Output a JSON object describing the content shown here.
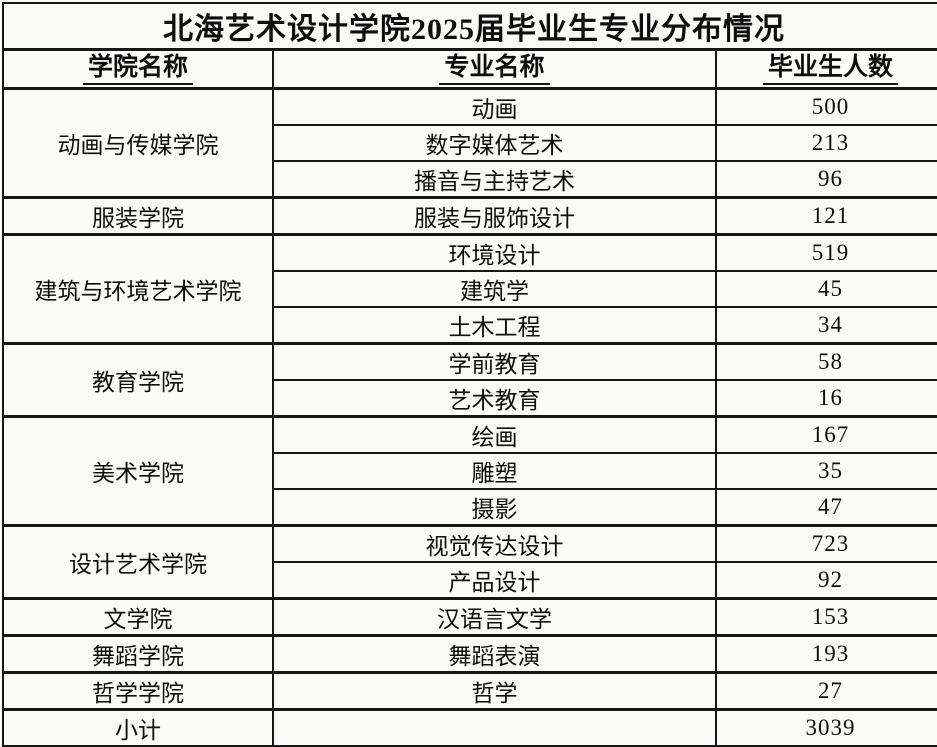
{
  "chart_data": {
    "type": "table",
    "title": "北海艺术设计学院2025届毕业生专业分布情况",
    "columns": [
      "学院名称",
      "专业名称",
      "毕业生人数"
    ],
    "groups": [
      {
        "college": "动画与传媒学院",
        "majors": [
          {
            "name": "动画",
            "count": 500
          },
          {
            "name": "数字媒体艺术",
            "count": 213
          },
          {
            "name": "播音与主持艺术",
            "count": 96
          }
        ]
      },
      {
        "college": "服装学院",
        "majors": [
          {
            "name": "服装与服饰设计",
            "count": 121
          }
        ]
      },
      {
        "college": "建筑与环境艺术学院",
        "majors": [
          {
            "name": "环境设计",
            "count": 519
          },
          {
            "name": "建筑学",
            "count": 45
          },
          {
            "name": "土木工程",
            "count": 34
          }
        ]
      },
      {
        "college": "教育学院",
        "majors": [
          {
            "name": "学前教育",
            "count": 58
          },
          {
            "name": "艺术教育",
            "count": 16
          }
        ]
      },
      {
        "college": "美术学院",
        "majors": [
          {
            "name": "绘画",
            "count": 167
          },
          {
            "name": "雕塑",
            "count": 35
          },
          {
            "name": "摄影",
            "count": 47
          }
        ]
      },
      {
        "college": "设计艺术学院",
        "majors": [
          {
            "name": "视觉传达设计",
            "count": 723
          },
          {
            "name": "产品设计",
            "count": 92
          }
        ]
      },
      {
        "college": "文学院",
        "majors": [
          {
            "name": "汉语言文学",
            "count": 153
          }
        ]
      },
      {
        "college": "舞蹈学院",
        "majors": [
          {
            "name": "舞蹈表演",
            "count": 193
          }
        ]
      },
      {
        "college": "哲学学院",
        "majors": [
          {
            "name": "哲学",
            "count": 27
          }
        ]
      }
    ],
    "subtotal": {
      "label": "小计",
      "major": "",
      "count": 3039
    },
    "layout_hints": {
      "grid": true,
      "header_underlined": true,
      "college_column_merged_per_group": true
    }
  },
  "colors": {
    "background": "#fafaf8",
    "border": "#161616",
    "text": "#0e0e0e"
  }
}
